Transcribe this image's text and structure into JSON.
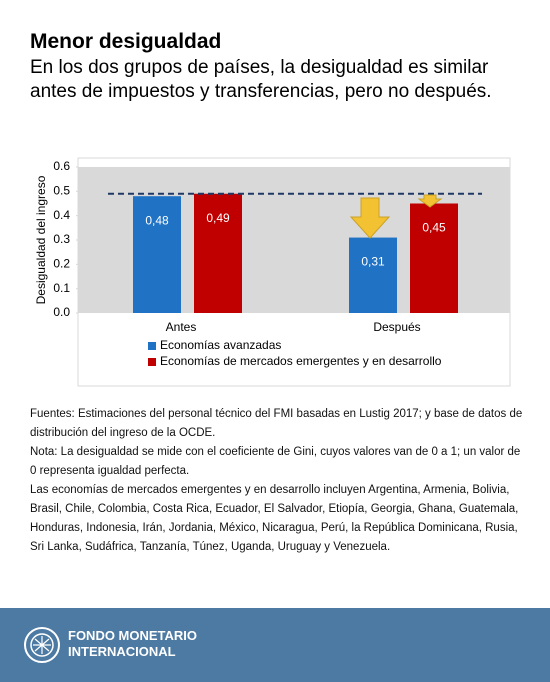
{
  "chart_data": {
    "type": "bar",
    "title": "Menor desigualdad",
    "subtitle": "En los dos grupos de países, la desigualdad es similar antes de impuestos y transferencias, pero no después.",
    "y_label": "Desigualdad del ingreso",
    "categories": [
      "Antes",
      "Después"
    ],
    "series": [
      {
        "name": "Economías avanzadas",
        "color": "#1f72c4",
        "values": [
          0.48,
          0.31
        ],
        "value_labels": [
          "0,48",
          "0,31"
        ]
      },
      {
        "name": "Economías de mercados emergentes y en desarrollo",
        "color": "#c00000",
        "values": [
          0.49,
          0.45
        ],
        "value_labels": [
          "0,49",
          "0,45"
        ]
      }
    ],
    "ylim": [
      0,
      0.6
    ],
    "yticks": [
      {
        "value": 0,
        "label": "0.0"
      },
      0.1,
      0.2,
      0.3,
      0.4,
      0.5,
      0.6
    ]
  },
  "notes": [
    "Fuentes: Estimaciones del personal técnico del FMI basadas en Lustig 2017; y base de datos de distribución del ingreso de la OCDE.",
    "Nota: La desigualdad se mide con el coeficiente de Gini, cuyos valores van de 0 a 1; un valor de 0 representa igualdad perfecta.",
    "Las economías de mercados emergentes y en desarrollo incluyen Argentina, Armenia, Bolivia, Brasil, Chile, Colombia, Costa Rica, Ecuador, El Salvador, Etiopía, Georgia, Ghana, Guatemala, Honduras, Indonesia, Irán, Jordania, México, Nicaragua, Perú, la República Dominicana, Rusia, Sri Lanka, Sudáfrica, Tanzanía, Túnez, Uganda, Uruguay y Venezuela."
  ],
  "footer": "FONDO MONETARIO INTERNACIONAL"
}
